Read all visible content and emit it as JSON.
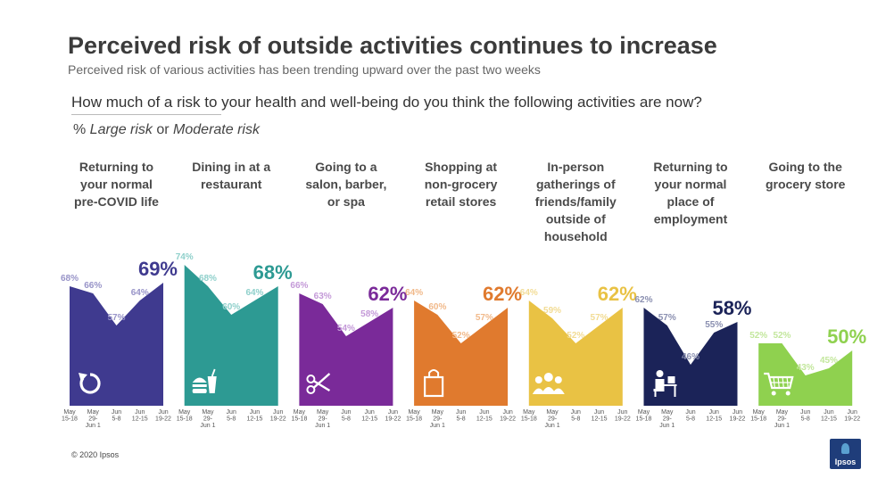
{
  "title": "Perceived risk of outside activities continues to increase",
  "subtitle": "Perceived risk of various activities has been trending upward over the past two weeks",
  "question": "How much of a risk to your health and well-being do you think the following activities are now?",
  "measure": {
    "prefix": "% ",
    "large": "Large risk",
    "or": " or ",
    "moderate": "Moderate risk"
  },
  "copyright": "© 2020 Ipsos",
  "logo_text": "Ipsos",
  "chart_data": {
    "type": "area",
    "title": "Perceived risk of outside activities continues to increase",
    "ylabel": "% Large risk or Moderate risk",
    "ylim": [
      0,
      100
    ],
    "x": [
      "May 15-18",
      "May 29-Jun 1",
      "Jun 5-8",
      "Jun 12-15",
      "Jun 19-22"
    ],
    "tick_labels": [
      [
        "May",
        "15-18"
      ],
      [
        "May",
        "29-",
        "Jun 1"
      ],
      [
        "Jun",
        "5-8"
      ],
      [
        "Jun",
        "12-15"
      ],
      [
        "Jun",
        "19-22"
      ]
    ],
    "series": [
      {
        "name": "Returning to your normal pre-COVID life",
        "label_lines": [
          "Returning to",
          "your normal",
          "pre-COVID life"
        ],
        "values": [
          68,
          66,
          57,
          64,
          69
        ],
        "color": "#3f3a8f",
        "label_color": "#9894c8",
        "icon": "rotate-icon"
      },
      {
        "name": "Dining in at a restaurant",
        "label_lines": [
          "Dining in at a",
          "restaurant"
        ],
        "values": [
          74,
          68,
          60,
          64,
          68
        ],
        "color": "#2d9a93",
        "label_color": "#8fd0cb",
        "icon": "food-icon"
      },
      {
        "name": "Going to a salon, barber, or spa",
        "label_lines": [
          "Going to a",
          "salon, barber,",
          "or spa"
        ],
        "values": [
          66,
          63,
          54,
          58,
          62
        ],
        "color": "#7a2a99",
        "label_color": "#c49ad8",
        "icon": "scissors-icon"
      },
      {
        "name": "Shopping at non-grocery retail stores",
        "label_lines": [
          "Shopping at",
          "non-grocery",
          "retail stores"
        ],
        "values": [
          64,
          60,
          52,
          57,
          62
        ],
        "color": "#e07a2e",
        "label_color": "#f1b98a",
        "icon": "shopping-bag-icon"
      },
      {
        "name": "In-person gatherings of friends/family outside of household",
        "label_lines": [
          "In-person",
          "gatherings of",
          "friends/family",
          "outside of",
          "household"
        ],
        "values": [
          64,
          59,
          52,
          57,
          62
        ],
        "color": "#e9c244",
        "label_color": "#f2dc95",
        "icon": "people-icon"
      },
      {
        "name": "Returning to your normal place of employment",
        "label_lines": [
          "Returning to",
          "your normal",
          "place of",
          "employment"
        ],
        "values": [
          62,
          57,
          46,
          55,
          58
        ],
        "color": "#1b2358",
        "label_color": "#8a8fb0",
        "icon": "desk-worker-icon"
      },
      {
        "name": "Going to the grocery store",
        "label_lines": [
          "Going to the",
          "grocery store"
        ],
        "values": [
          52,
          52,
          43,
          45,
          50
        ],
        "color": "#8fd14f",
        "label_color": "#c3e79d",
        "icon": "shopping-cart-icon"
      }
    ]
  }
}
